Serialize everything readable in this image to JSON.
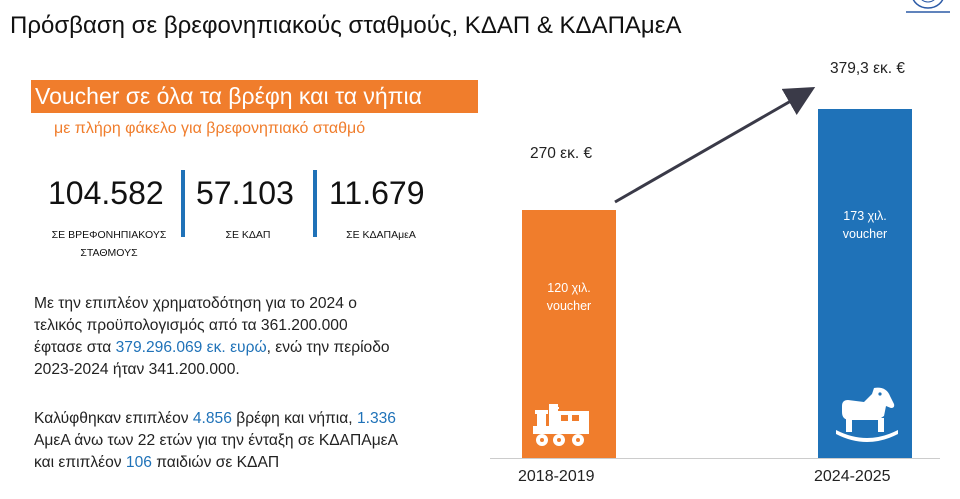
{
  "title": "Πρόσβαση σε βρεφονηπιακούς σταθμούς, ΚΔΑΠ & ΚΔΑΠΑμεΑ",
  "banner": "Voucher σε όλα τα βρέφη και τα νήπια",
  "subline": "με πλήρη φάκελο για βρεφονηπιακό σταθμό",
  "stats": [
    {
      "value": "104.582",
      "label1": "ΣΕ ΒΡΕΦΟΝΗΠΙΑΚΟΥΣ",
      "label2": "ΣΤΑΘΜΟΥΣ"
    },
    {
      "value": "57.103",
      "label1": "ΣΕ ΚΔΑΠ",
      "label2": ""
    },
    {
      "value": "11.679",
      "label1": "ΣΕ ΚΔΑΠΑμεΑ",
      "label2": ""
    }
  ],
  "para1": {
    "line1": "Με την επιπλέον χρηματοδότηση για το 2024 ο",
    "line2": "τελικός προϋπολογισμός από τα 361.200.000",
    "line3_a": "έφτασε στα ",
    "line3_hl": "379.296.069 εκ. ευρώ",
    "line3_b": ", ενώ την περίοδο",
    "line4": "2023-2024 ήταν 341.200.000."
  },
  "para2": {
    "l1_a": "Καλύφθηκαν επιπλέον ",
    "l1_hl1": "4.856",
    "l1_b": " βρέφη και νήπια, ",
    "l1_hl2": "1.336",
    "line2": "ΑμεΑ άνω των 22 ετών για την ένταξη σε ΚΔΑΠΑμεΑ",
    "l3_a": "και επιπλέον ",
    "l3_hl": "106",
    "l3_b": " παιδιών σε ΚΔΑΠ"
  },
  "chart_data": {
    "type": "bar",
    "categories": [
      "2018-2019",
      "2024-2025"
    ],
    "values": [
      270,
      379.3
    ],
    "value_labels": [
      "270 εκ. €",
      "379,3 εκ. €"
    ],
    "inner_labels": [
      [
        "120 χιλ.",
        "voucher"
      ],
      [
        "173 χιλ.",
        "voucher"
      ]
    ],
    "icons": [
      "toy-train-icon",
      "rocking-horse-icon"
    ],
    "colors": [
      "#f07d2c",
      "#1f72b8"
    ],
    "arrow_color": "#3a3a48"
  }
}
